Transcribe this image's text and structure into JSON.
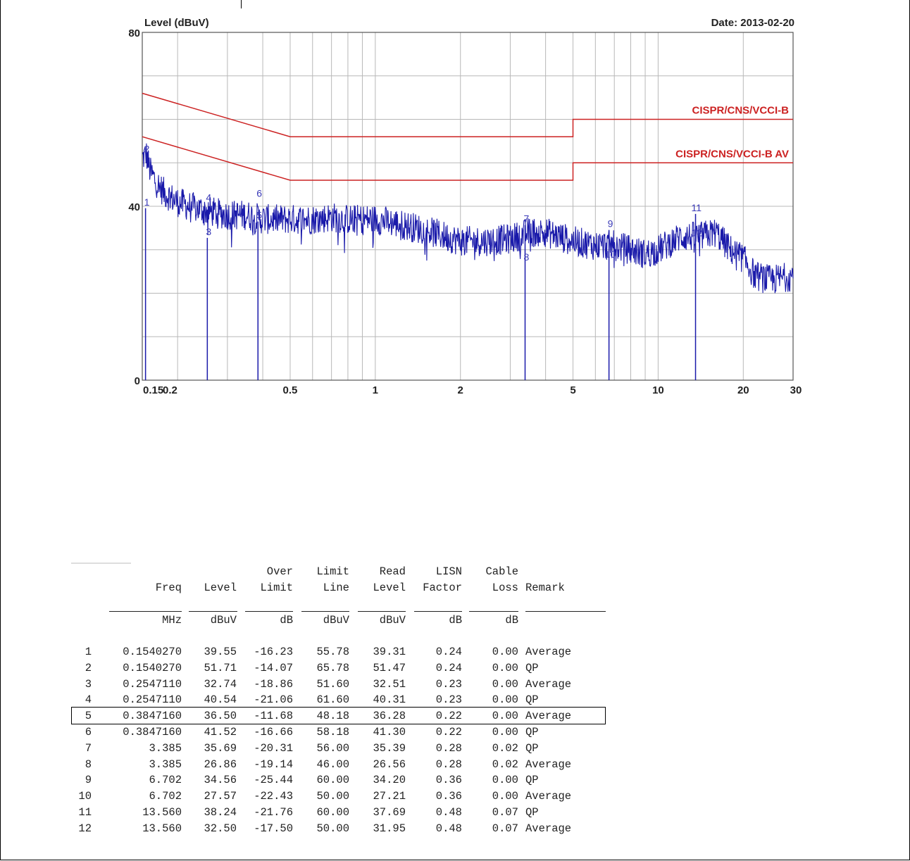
{
  "chart_data": {
    "type": "line",
    "ylabel": "Level (dBuV)",
    "date_text": "Date: 2013-02-20",
    "xscale": "log",
    "xlim": [
      0.15,
      30
    ],
    "ylim": [
      0,
      80
    ],
    "x_tick_labels": [
      {
        "value": 0.15,
        "label": "0.15"
      },
      {
        "value": 0.2,
        "label": "0.2"
      },
      {
        "value": 0.5,
        "label": "0.5"
      },
      {
        "value": 1,
        "label": "1"
      },
      {
        "value": 2,
        "label": "2"
      },
      {
        "value": 5,
        "label": "5"
      },
      {
        "value": 10,
        "label": "10"
      },
      {
        "value": 20,
        "label": "20"
      },
      {
        "value": 30,
        "label": "30"
      }
    ],
    "y_tick_labels": [
      {
        "value": 0,
        "label": "0"
      },
      {
        "value": 40,
        "label": "40"
      },
      {
        "value": 80,
        "label": "80"
      }
    ],
    "grid": true,
    "series": [
      {
        "name": "CISPR/CNS/VCCI-B",
        "color": "#cc2222",
        "points": [
          [
            0.15,
            66
          ],
          [
            0.5,
            56
          ],
          [
            5,
            56
          ],
          [
            5,
            60
          ],
          [
            30,
            60
          ]
        ]
      },
      {
        "name": "CISPR/CNS/VCCI-B AV",
        "color": "#cc2222",
        "points": [
          [
            0.15,
            56
          ],
          [
            0.5,
            46
          ],
          [
            5,
            46
          ],
          [
            5,
            50
          ],
          [
            30,
            50
          ]
        ]
      },
      {
        "color": "#1a1aaa",
        "envelope": [
          [
            0.15,
            51
          ],
          [
            0.155,
            52
          ],
          [
            0.16,
            48
          ],
          [
            0.17,
            45
          ],
          [
            0.18,
            43
          ],
          [
            0.2,
            41
          ],
          [
            0.22,
            40
          ],
          [
            0.25,
            39
          ],
          [
            0.3,
            38
          ],
          [
            0.35,
            38
          ],
          [
            0.4,
            37
          ],
          [
            0.45,
            37
          ],
          [
            0.5,
            37
          ],
          [
            0.6,
            37
          ],
          [
            0.7,
            37.5
          ],
          [
            0.8,
            37
          ],
          [
            0.9,
            37
          ],
          [
            1,
            37
          ],
          [
            1.2,
            36
          ],
          [
            1.5,
            34.5
          ],
          [
            2,
            32
          ],
          [
            2.5,
            32
          ],
          [
            3,
            32.5
          ],
          [
            3.5,
            34
          ],
          [
            4,
            34
          ],
          [
            5,
            32
          ],
          [
            6,
            31
          ],
          [
            7,
            31
          ],
          [
            8,
            30
          ],
          [
            9,
            29
          ],
          [
            10,
            30
          ],
          [
            12,
            33
          ],
          [
            14,
            33
          ],
          [
            16,
            34
          ],
          [
            18,
            30
          ],
          [
            20,
            28
          ],
          [
            22,
            24
          ],
          [
            25,
            23
          ],
          [
            30,
            24
          ]
        ]
      }
    ],
    "markers": [
      {
        "label": "1",
        "x": 0.154027,
        "y": 39.55
      },
      {
        "label": "2",
        "x": 0.154027,
        "y": 51.71
      },
      {
        "label": "3",
        "x": 0.254711,
        "y": 32.74
      },
      {
        "label": "4",
        "x": 0.254711,
        "y": 40.54
      },
      {
        "label": "5",
        "x": 0.384716,
        "y": 36.5
      },
      {
        "label": "6",
        "x": 0.384716,
        "y": 41.52
      },
      {
        "label": "7",
        "x": 3.385,
        "y": 35.69
      },
      {
        "label": "8",
        "x": 3.385,
        "y": 26.86
      },
      {
        "label": "9",
        "x": 6.702,
        "y": 34.56
      },
      {
        "label": "10",
        "x": 6.702,
        "y": 27.57
      },
      {
        "label": "11",
        "x": 13.56,
        "y": 38.24
      },
      {
        "label": "12",
        "x": 13.56,
        "y": 32.5
      }
    ],
    "marker_lines": [
      0.154027,
      0.254711,
      0.384716,
      3.385,
      6.702,
      13.56
    ]
  },
  "table": {
    "headers_top": [
      "",
      "",
      "Over",
      "Limit",
      "Read",
      "LISN",
      "Cable",
      ""
    ],
    "headers_bottom": [
      "Freq",
      "Level",
      "Limit",
      "Line",
      "Level",
      "Factor",
      "Loss",
      "Remark"
    ],
    "units": [
      "MHz",
      "dBuV",
      "dB",
      "dBuV",
      "dBuV",
      "dB",
      "dB",
      ""
    ],
    "rows": [
      [
        "1",
        "0.1540270",
        "39.55",
        "-16.23",
        "55.78",
        "39.31",
        "0.24",
        "0.00",
        "Average"
      ],
      [
        "2",
        "0.1540270",
        "51.71",
        "-14.07",
        "65.78",
        "51.47",
        "0.24",
        "0.00",
        "QP"
      ],
      [
        "3",
        "0.2547110",
        "32.74",
        "-18.86",
        "51.60",
        "32.51",
        "0.23",
        "0.00",
        "Average"
      ],
      [
        "4",
        "0.2547110",
        "40.54",
        "-21.06",
        "61.60",
        "40.31",
        "0.23",
        "0.00",
        "QP"
      ],
      [
        "5",
        "0.3847160",
        "36.50",
        "-11.68",
        "48.18",
        "36.28",
        "0.22",
        "0.00",
        "Average"
      ],
      [
        "6",
        "0.3847160",
        "41.52",
        "-16.66",
        "58.18",
        "41.30",
        "0.22",
        "0.00",
        "QP"
      ],
      [
        "7",
        "3.385",
        "35.69",
        "-20.31",
        "56.00",
        "35.39",
        "0.28",
        "0.02",
        "QP"
      ],
      [
        "8",
        "3.385",
        "26.86",
        "-19.14",
        "46.00",
        "26.56",
        "0.28",
        "0.02",
        "Average"
      ],
      [
        "9",
        "6.702",
        "34.56",
        "-25.44",
        "60.00",
        "34.20",
        "0.36",
        "0.00",
        "QP"
      ],
      [
        "10",
        "6.702",
        "27.57",
        "-22.43",
        "50.00",
        "27.21",
        "0.36",
        "0.00",
        "Average"
      ],
      [
        "11",
        "13.560",
        "38.24",
        "-21.76",
        "60.00",
        "37.69",
        "0.48",
        "0.07",
        "QP"
      ],
      [
        "12",
        "13.560",
        "32.50",
        "-17.50",
        "50.00",
        "31.95",
        "0.48",
        "0.07",
        "Average"
      ]
    ],
    "highlighted_row": "5"
  }
}
